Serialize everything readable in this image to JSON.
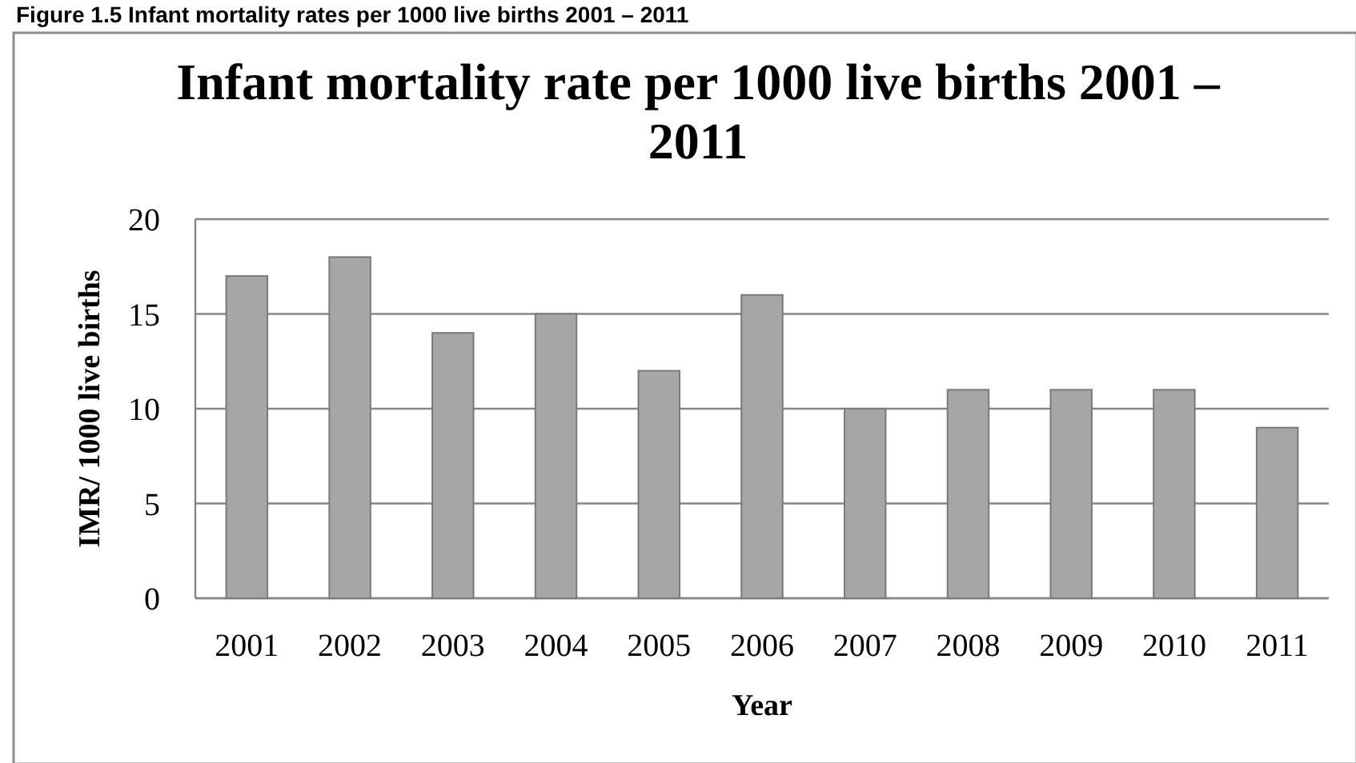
{
  "chart_data": {
    "type": "bar",
    "title": "Infant mortality rate per 1000 live births 2001 – 2011",
    "xlabel": "Year",
    "ylabel": "IMR/ 1000 live births",
    "categories": [
      "2001",
      "2002",
      "2003",
      "2004",
      "2005",
      "2006",
      "2007",
      "2008",
      "2009",
      "2010",
      "2011"
    ],
    "values": [
      17,
      18,
      14,
      15,
      12,
      16,
      10,
      11,
      11,
      11,
      9
    ],
    "color": "#a6a6a6",
    "ylim": [
      0,
      20
    ],
    "yticks": [
      0,
      5,
      10,
      15,
      20
    ],
    "grid": "y",
    "annotations": [
      "Figure 1.5 Infant mortality rates per 1000 live births 2001 – 2011"
    ]
  }
}
